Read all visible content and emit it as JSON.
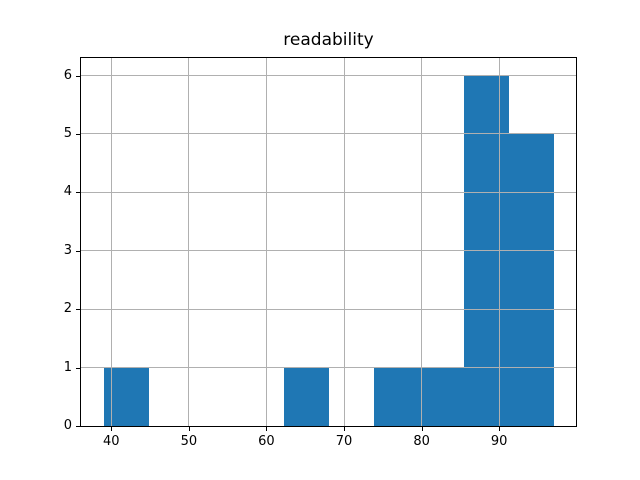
{
  "chart_data": {
    "type": "histogram",
    "title": "readability",
    "xlabel": "",
    "ylabel": "",
    "bin_edges": [
      39.0,
      44.8,
      50.6,
      56.4,
      62.2,
      68.0,
      73.8,
      79.6,
      85.4,
      91.2,
      97.0
    ],
    "counts": [
      1,
      0,
      0,
      0,
      1,
      0,
      1,
      1,
      6,
      5
    ],
    "xticks": [
      "40",
      "50",
      "60",
      "70",
      "80",
      "90"
    ],
    "xtick_values": [
      40,
      50,
      60,
      70,
      80,
      90
    ],
    "yticks": [
      "0",
      "1",
      "2",
      "3",
      "4",
      "5",
      "6"
    ],
    "ytick_values": [
      0,
      1,
      2,
      3,
      4,
      5,
      6
    ],
    "xlim": [
      36.1,
      99.9
    ],
    "ylim": [
      0,
      6.3
    ],
    "grid": true,
    "grid_on_top": true,
    "legend": null,
    "bar_color": "#1f77b4",
    "grid_color": "#b0b0b0",
    "spine_color": "#000000",
    "background_color": "#ffffff"
  }
}
